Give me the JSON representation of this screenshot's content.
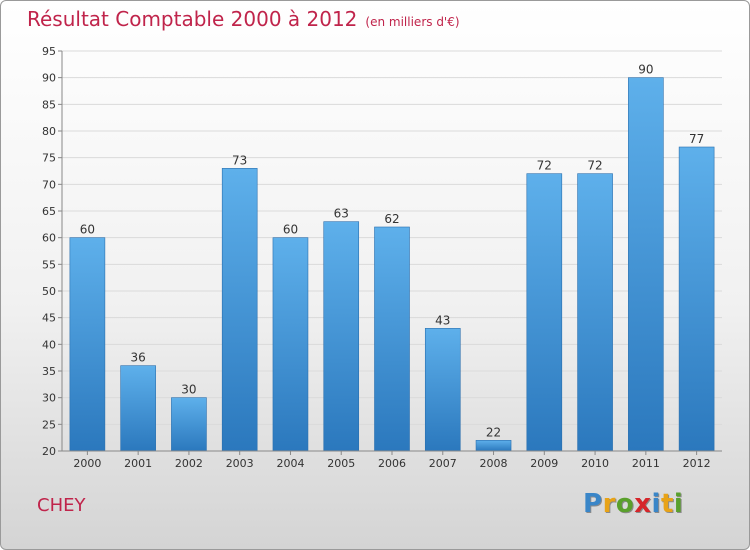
{
  "chart_data": {
    "type": "bar",
    "title": "Résultat Comptable 2000 à 2012",
    "subtitle": "(en milliers d'€)",
    "xlabel": "",
    "ylabel": "",
    "categories": [
      "2000",
      "2001",
      "2002",
      "2003",
      "2004",
      "2005",
      "2006",
      "2007",
      "2008",
      "2009",
      "2010",
      "2011",
      "2012"
    ],
    "values": [
      60,
      36,
      30,
      73,
      60,
      63,
      62,
      43,
      22,
      72,
      72,
      90,
      77
    ],
    "ylim": [
      20,
      95
    ],
    "yticks": [
      20,
      25,
      30,
      35,
      40,
      45,
      50,
      55,
      60,
      65,
      70,
      75,
      80,
      85,
      90,
      95
    ],
    "grid": "horizontal",
    "bar_color": "#3d8fd4",
    "title_color": "#c0244b"
  },
  "footer": {
    "commune": "CHEY",
    "logo_letters": [
      "P",
      "r",
      "o",
      "x",
      "i",
      "t",
      "i"
    ],
    "logo_colors": [
      "#3a86c8",
      "#e8a317",
      "#5aa02c",
      "#d6262b",
      "#3a86c8",
      "#e8a317",
      "#5aa02c"
    ]
  }
}
